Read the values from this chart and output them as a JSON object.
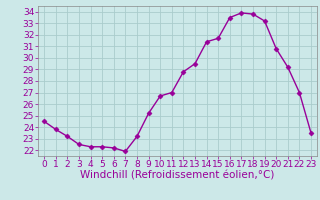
{
  "x": [
    0,
    1,
    2,
    3,
    4,
    5,
    6,
    7,
    8,
    9,
    10,
    11,
    12,
    13,
    14,
    15,
    16,
    17,
    18,
    19,
    20,
    21,
    22,
    23
  ],
  "y": [
    24.5,
    23.8,
    23.2,
    22.5,
    22.3,
    22.3,
    22.2,
    21.9,
    23.2,
    25.2,
    26.7,
    27.0,
    28.8,
    29.5,
    31.4,
    31.7,
    33.5,
    33.9,
    33.8,
    33.2,
    30.8,
    29.2,
    27.0,
    23.5
  ],
  "line_color": "#990099",
  "marker": "D",
  "marker_size": 2.5,
  "line_width": 1.0,
  "bg_color": "#cce8e8",
  "grid_color": "#aacccc",
  "xlabel": "Windchill (Refroidissement éolien,°C)",
  "xlabel_color": "#990099",
  "xlim": [
    -0.5,
    23.5
  ],
  "ylim": [
    21.5,
    34.5
  ],
  "yticks": [
    22,
    23,
    24,
    25,
    26,
    27,
    28,
    29,
    30,
    31,
    32,
    33,
    34
  ],
  "xticks": [
    0,
    1,
    2,
    3,
    4,
    5,
    6,
    7,
    8,
    9,
    10,
    11,
    12,
    13,
    14,
    15,
    16,
    17,
    18,
    19,
    20,
    21,
    22,
    23
  ],
  "tick_color": "#990099",
  "tick_fontsize": 6.5,
  "xlabel_fontsize": 7.5,
  "spine_color": "#888888"
}
